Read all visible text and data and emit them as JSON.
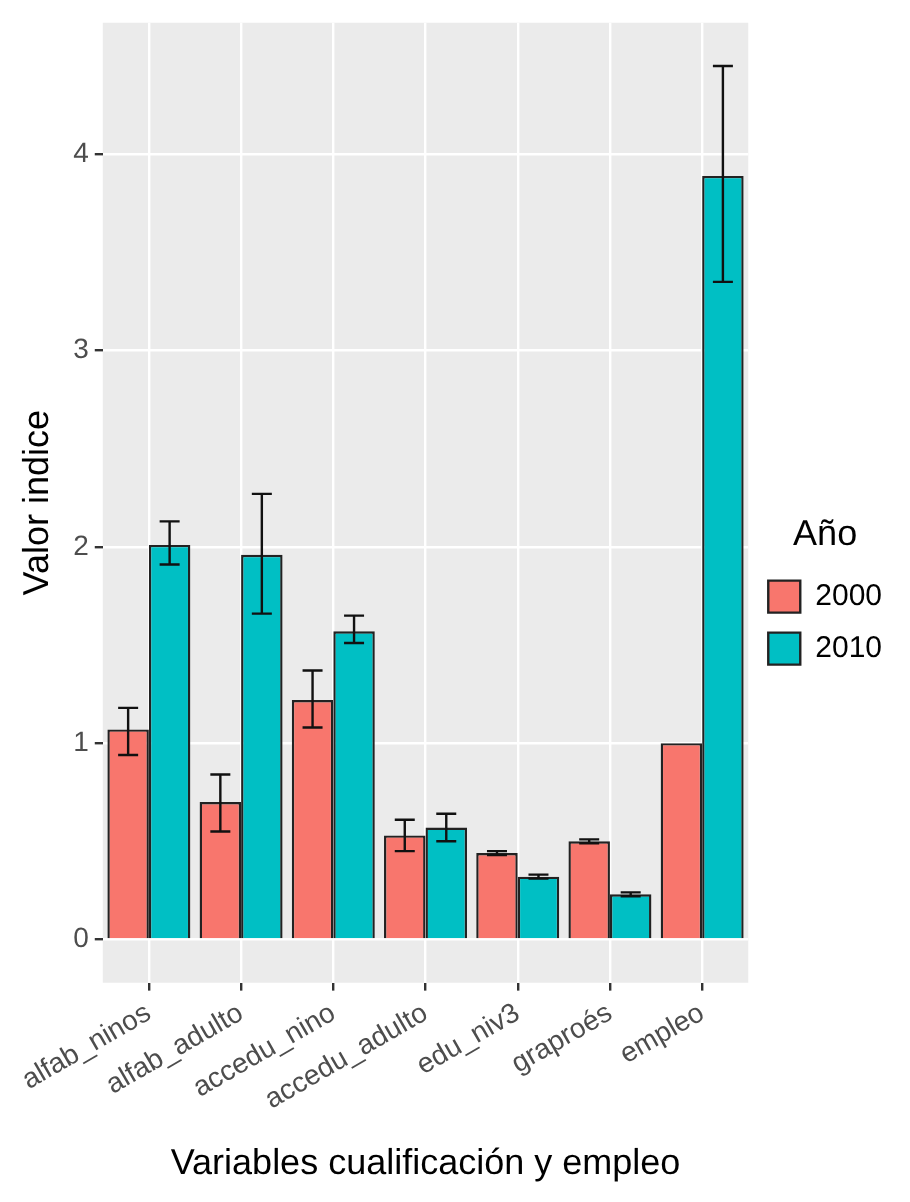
{
  "chart_data": {
    "type": "bar",
    "xlabel": "Variables cualificación y empleo",
    "ylabel": "Valor indice",
    "legend_title": "Año",
    "categories": [
      "alfab_ninos",
      "alfab_adulto",
      "accedu_nino",
      "accedu_adulto",
      "edu_niv3",
      "graproés",
      "empleo"
    ],
    "series": [
      {
        "name": "2000",
        "color": "#f8766d",
        "values": [
          1.07,
          0.7,
          1.22,
          0.53,
          0.44,
          0.5,
          1.0
        ],
        "errors": [
          [
            0.94,
            1.18
          ],
          [
            0.55,
            0.84
          ],
          [
            1.08,
            1.37
          ],
          [
            0.45,
            0.61
          ],
          [
            0.43,
            0.45
          ],
          [
            0.49,
            0.51
          ],
          null
        ]
      },
      {
        "name": "2010",
        "color": "#00bfc4",
        "values": [
          2.01,
          1.96,
          1.57,
          0.57,
          0.32,
          0.23,
          3.89
        ],
        "errors": [
          [
            1.91,
            2.13
          ],
          [
            1.66,
            2.27
          ],
          [
            1.51,
            1.65
          ],
          [
            0.5,
            0.64
          ],
          [
            0.31,
            0.33
          ],
          [
            0.22,
            0.24
          ],
          [
            3.35,
            4.45
          ]
        ]
      }
    ],
    "ylim": [
      -0.22,
      4.67
    ],
    "yticks": [
      0,
      1,
      2,
      3,
      4
    ],
    "grid": true,
    "legend": "right"
  }
}
